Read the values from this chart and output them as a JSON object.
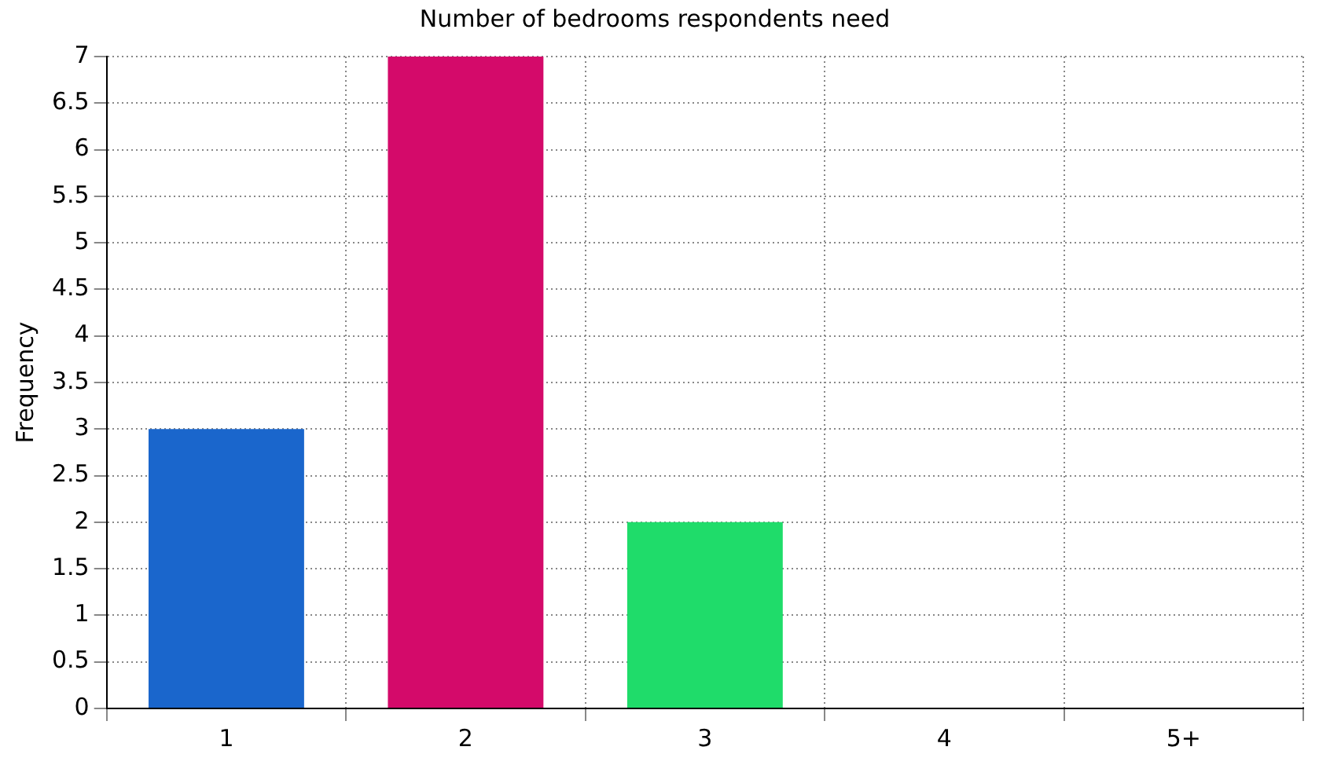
{
  "chart_data": {
    "type": "bar",
    "title": "Number of bedrooms respondents need",
    "ylabel": "Frequency",
    "categories": [
      "1",
      "2",
      "3",
      "4",
      "5+"
    ],
    "values": [
      3,
      7,
      2,
      0,
      0
    ],
    "colors": [
      "#1a66cc",
      "#d40a6a",
      "#1fdc6a",
      "#8b0020",
      "#c0861c"
    ],
    "ylim": [
      0,
      7
    ],
    "yticks": [
      0,
      0.5,
      1,
      1.5,
      2,
      2.5,
      3,
      3.5,
      4,
      4.5,
      5,
      5.5,
      6,
      6.5,
      7
    ],
    "grid": true,
    "legend": false
  }
}
